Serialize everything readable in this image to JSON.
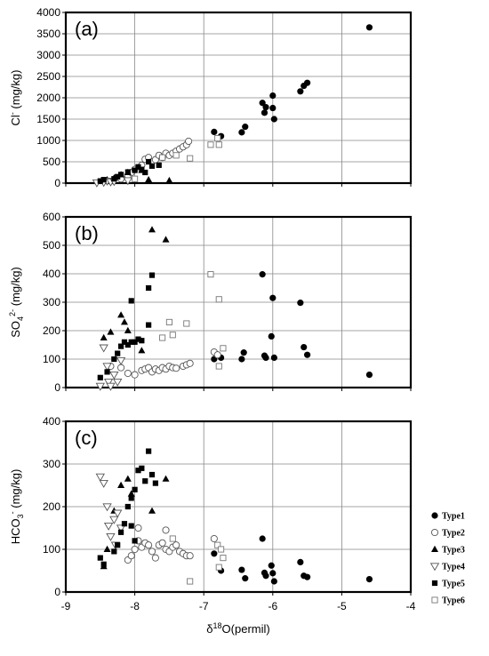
{
  "figure": {
    "x_title": "δ18O(permil)",
    "x_ticks": [
      "-9",
      "-8",
      "-7",
      "-6",
      "-5",
      "-4"
    ]
  },
  "legend": [
    {
      "name": "Type1",
      "marker": "circle-filled"
    },
    {
      "name": "Type2",
      "marker": "circle-open"
    },
    {
      "name": "Type3",
      "marker": "triangle-up-filled"
    },
    {
      "name": "Type4",
      "marker": "triangle-down-open"
    },
    {
      "name": "Type5",
      "marker": "square-filled"
    },
    {
      "name": "Type6",
      "marker": "square-open"
    }
  ],
  "chart_data": [
    {
      "type": "scatter",
      "panel_label": "(a)",
      "ylabel": "Cl- (mg/kg)",
      "xlim": [
        -9,
        -4
      ],
      "ylim": [
        0,
        4000
      ],
      "yticks": [
        0,
        500,
        1000,
        1500,
        2000,
        2500,
        3000,
        3500,
        4000
      ],
      "series": [
        {
          "name": "Type1",
          "points": [
            [
              -6.85,
              1200
            ],
            [
              -6.75,
              1100
            ],
            [
              -6.45,
              1190
            ],
            [
              -6.4,
              1320
            ],
            [
              -6.15,
              1880
            ],
            [
              -6.12,
              1650
            ],
            [
              -6.1,
              1780
            ],
            [
              -6.0,
              2050
            ],
            [
              -6.0,
              1760
            ],
            [
              -5.98,
              1500
            ],
            [
              -5.6,
              2150
            ],
            [
              -5.55,
              2280
            ],
            [
              -5.5,
              2350
            ],
            [
              -4.6,
              3650
            ]
          ]
        },
        {
          "name": "Type2",
          "points": [
            [
              -8.2,
              100
            ],
            [
              -8.1,
              180
            ],
            [
              -8.05,
              250
            ],
            [
              -8.0,
              320
            ],
            [
              -7.9,
              420
            ],
            [
              -7.85,
              560
            ],
            [
              -7.8,
              600
            ],
            [
              -7.75,
              500
            ],
            [
              -7.7,
              550
            ],
            [
              -7.65,
              650
            ],
            [
              -7.6,
              600
            ],
            [
              -7.55,
              700
            ],
            [
              -7.5,
              650
            ],
            [
              -7.45,
              700
            ],
            [
              -7.4,
              750
            ],
            [
              -7.35,
              800
            ],
            [
              -7.3,
              850
            ],
            [
              -7.25,
              900
            ],
            [
              -7.22,
              980
            ]
          ]
        },
        {
          "name": "Type3",
          "points": [
            [
              -8.4,
              80
            ],
            [
              -8.3,
              120
            ],
            [
              -8.2,
              200
            ],
            [
              -8.1,
              250
            ],
            [
              -7.9,
              300
            ],
            [
              -7.8,
              80
            ],
            [
              -7.5,
              60
            ]
          ]
        },
        {
          "name": "Type4",
          "points": [
            [
              -8.55,
              10
            ],
            [
              -8.45,
              20
            ],
            [
              -8.4,
              50
            ],
            [
              -8.35,
              30
            ],
            [
              -8.3,
              40
            ],
            [
              -8.1,
              60
            ]
          ]
        },
        {
          "name": "Type5",
          "points": [
            [
              -8.5,
              50
            ],
            [
              -8.45,
              80
            ],
            [
              -8.3,
              100
            ],
            [
              -8.25,
              150
            ],
            [
              -8.2,
              200
            ],
            [
              -8.1,
              260
            ],
            [
              -8.0,
              300
            ],
            [
              -7.95,
              380
            ],
            [
              -7.9,
              320
            ],
            [
              -7.85,
              250
            ],
            [
              -7.8,
              500
            ],
            [
              -7.75,
              400
            ],
            [
              -7.65,
              420
            ]
          ]
        },
        {
          "name": "Type6",
          "points": [
            [
              -8.0,
              100
            ],
            [
              -7.6,
              600
            ],
            [
              -7.4,
              650
            ],
            [
              -7.2,
              580
            ],
            [
              -6.9,
              900
            ],
            [
              -6.8,
              1050
            ],
            [
              -6.78,
              900
            ]
          ]
        }
      ]
    },
    {
      "type": "scatter",
      "panel_label": "(b)",
      "ylabel": "SO42- (mg/kg)",
      "xlim": [
        -9,
        -4
      ],
      "ylim": [
        0,
        600
      ],
      "yticks": [
        0,
        100,
        200,
        300,
        400,
        500,
        600
      ],
      "series": [
        {
          "name": "Type1",
          "points": [
            [
              -6.85,
              100
            ],
            [
              -6.75,
              105
            ],
            [
              -6.45,
              100
            ],
            [
              -6.42,
              123
            ],
            [
              -6.15,
              398
            ],
            [
              -6.12,
              112
            ],
            [
              -6.1,
              105
            ],
            [
              -6.02,
              180
            ],
            [
              -6.0,
              315
            ],
            [
              -5.98,
              105
            ],
            [
              -5.6,
              298
            ],
            [
              -5.55,
              142
            ],
            [
              -5.5,
              115
            ],
            [
              -4.6,
              45
            ]
          ]
        },
        {
          "name": "Type2",
          "points": [
            [
              -8.35,
              75
            ],
            [
              -8.2,
              70
            ],
            [
              -8.1,
              50
            ],
            [
              -8.0,
              45
            ],
            [
              -7.9,
              60
            ],
            [
              -7.85,
              65
            ],
            [
              -7.8,
              70
            ],
            [
              -7.75,
              55
            ],
            [
              -7.7,
              65
            ],
            [
              -7.65,
              60
            ],
            [
              -7.6,
              70
            ],
            [
              -7.55,
              65
            ],
            [
              -7.5,
              75
            ],
            [
              -7.45,
              70
            ],
            [
              -7.4,
              68
            ],
            [
              -7.3,
              75
            ],
            [
              -7.25,
              80
            ],
            [
              -7.2,
              85
            ],
            [
              -6.85,
              125
            ],
            [
              -6.8,
              115
            ]
          ]
        },
        {
          "name": "Type3",
          "points": [
            [
              -8.45,
              175
            ],
            [
              -8.35,
              195
            ],
            [
              -8.2,
              255
            ],
            [
              -8.15,
              230
            ],
            [
              -8.1,
              200
            ],
            [
              -7.9,
              130
            ],
            [
              -7.75,
              555
            ],
            [
              -7.55,
              520
            ]
          ]
        },
        {
          "name": "Type4",
          "points": [
            [
              -8.5,
              5
            ],
            [
              -8.45,
              140
            ],
            [
              -8.4,
              75
            ],
            [
              -8.38,
              20
            ],
            [
              -8.35,
              5
            ],
            [
              -8.3,
              45
            ],
            [
              -8.25,
              20
            ],
            [
              -8.2,
              95
            ]
          ]
        },
        {
          "name": "Type5",
          "points": [
            [
              -8.5,
              35
            ],
            [
              -8.4,
              55
            ],
            [
              -8.3,
              100
            ],
            [
              -8.25,
              120
            ],
            [
              -8.2,
              145
            ],
            [
              -8.15,
              160
            ],
            [
              -8.1,
              150
            ],
            [
              -8.05,
              160
            ],
            [
              -8.0,
              160
            ],
            [
              -7.95,
              170
            ],
            [
              -7.9,
              165
            ],
            [
              -8.05,
              305
            ],
            [
              -7.8,
              220
            ],
            [
              -7.8,
              350
            ],
            [
              -7.75,
              395
            ]
          ]
        },
        {
          "name": "Type6",
          "points": [
            [
              -7.6,
              175
            ],
            [
              -7.5,
              230
            ],
            [
              -7.45,
              185
            ],
            [
              -7.25,
              225
            ],
            [
              -6.9,
              398
            ],
            [
              -6.78,
              310
            ],
            [
              -6.78,
              75
            ],
            [
              -6.72,
              138
            ]
          ]
        }
      ]
    },
    {
      "type": "scatter",
      "panel_label": "(c)",
      "ylabel": "HCO3- (mg/kg)",
      "xlim": [
        -9,
        -4
      ],
      "ylim": [
        0,
        400
      ],
      "yticks": [
        0,
        100,
        200,
        300,
        400
      ],
      "series": [
        {
          "name": "Type1",
          "points": [
            [
              -6.85,
              90
            ],
            [
              -6.75,
              50
            ],
            [
              -6.45,
              52
            ],
            [
              -6.4,
              32
            ],
            [
              -6.15,
              125
            ],
            [
              -6.12,
              45
            ],
            [
              -6.1,
              38
            ],
            [
              -6.02,
              62
            ],
            [
              -6.0,
              44
            ],
            [
              -5.98,
              25
            ],
            [
              -5.6,
              70
            ],
            [
              -5.55,
              38
            ],
            [
              -5.5,
              35
            ],
            [
              -4.6,
              30
            ]
          ]
        },
        {
          "name": "Type2",
          "points": [
            [
              -8.1,
              75
            ],
            [
              -8.05,
              85
            ],
            [
              -8.0,
              100
            ],
            [
              -7.95,
              120
            ],
            [
              -7.9,
              105
            ],
            [
              -7.85,
              115
            ],
            [
              -7.8,
              110
            ],
            [
              -7.75,
              95
            ],
            [
              -7.7,
              80
            ],
            [
              -7.65,
              110
            ],
            [
              -7.6,
              115
            ],
            [
              -7.55,
              100
            ],
            [
              -7.5,
              95
            ],
            [
              -7.45,
              105
            ],
            [
              -7.4,
              110
            ],
            [
              -7.35,
              95
            ],
            [
              -7.3,
              90
            ],
            [
              -7.25,
              85
            ],
            [
              -7.2,
              85
            ],
            [
              -7.55,
              145
            ],
            [
              -7.95,
              150
            ],
            [
              -6.85,
              125
            ]
          ]
        },
        {
          "name": "Type3",
          "points": [
            [
              -8.45,
              60
            ],
            [
              -8.4,
              100
            ],
            [
              -8.3,
              190
            ],
            [
              -8.2,
              250
            ],
            [
              -8.1,
              265
            ],
            [
              -8.05,
              230
            ],
            [
              -7.75,
              190
            ],
            [
              -7.55,
              265
            ]
          ]
        },
        {
          "name": "Type4",
          "points": [
            [
              -8.5,
              270
            ],
            [
              -8.45,
              255
            ],
            [
              -8.4,
              200
            ],
            [
              -8.38,
              155
            ],
            [
              -8.35,
              130
            ],
            [
              -8.3,
              170
            ],
            [
              -8.28,
              110
            ],
            [
              -8.25,
              185
            ],
            [
              -8.2,
              150
            ]
          ]
        },
        {
          "name": "Type5",
          "points": [
            [
              -8.5,
              80
            ],
            [
              -8.45,
              65
            ],
            [
              -8.3,
              95
            ],
            [
              -8.25,
              110
            ],
            [
              -8.2,
              140
            ],
            [
              -8.15,
              160
            ],
            [
              -8.1,
              200
            ],
            [
              -8.05,
              220
            ],
            [
              -8.0,
              240
            ],
            [
              -7.95,
              285
            ],
            [
              -7.9,
              290
            ],
            [
              -7.85,
              260
            ],
            [
              -7.8,
              330
            ],
            [
              -7.75,
              275
            ],
            [
              -7.7,
              255
            ],
            [
              -8.05,
              155
            ],
            [
              -8.0,
              120
            ]
          ]
        },
        {
          "name": "Type6",
          "points": [
            [
              -7.45,
              125
            ],
            [
              -7.2,
              25
            ],
            [
              -6.8,
              110
            ],
            [
              -6.75,
              100
            ],
            [
              -6.72,
              80
            ],
            [
              -6.78,
              58
            ]
          ]
        }
      ]
    }
  ]
}
